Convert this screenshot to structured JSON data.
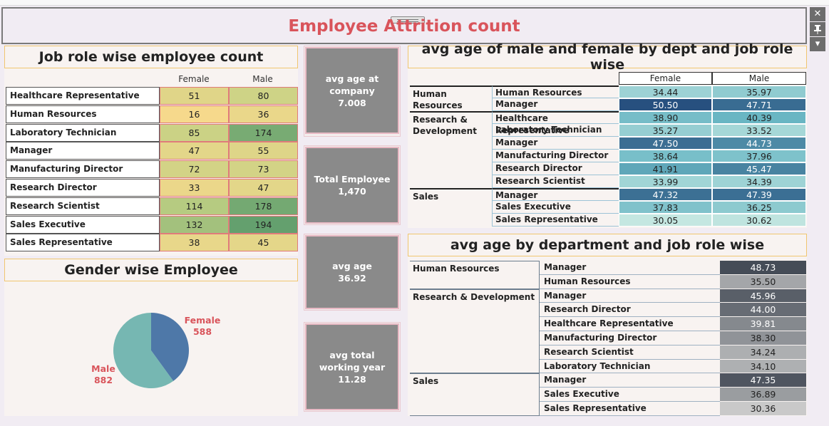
{
  "title": "Employee Attrition count",
  "window_controls": {
    "close": "✕",
    "pin": "📌",
    "menu": "▾"
  },
  "job_role_panel": {
    "title": "Job role wise employee count",
    "columns": [
      "Female",
      "Male"
    ],
    "rows": [
      {
        "role": "Healthcare Representative",
        "female": "51",
        "male": "80"
      },
      {
        "role": "Human Resources",
        "female": "16",
        "male": "36"
      },
      {
        "role": "Laboratory Technician",
        "female": "85",
        "male": "174"
      },
      {
        "role": "Manager",
        "female": "47",
        "male": "55"
      },
      {
        "role": "Manufacturing Director",
        "female": "72",
        "male": "73"
      },
      {
        "role": "Research Director",
        "female": "33",
        "male": "47"
      },
      {
        "role": "Research Scientist",
        "female": "114",
        "male": "178"
      },
      {
        "role": "Sales Executive",
        "female": "132",
        "male": "194"
      },
      {
        "role": "Sales Representative",
        "female": "38",
        "male": "45"
      }
    ],
    "colors": {
      "low": "#f6d98c",
      "high": "#64a06e"
    }
  },
  "gender_panel": {
    "title": "Gender wise Employee",
    "female_label": "Female",
    "female_count": "588",
    "male_label": "Male",
    "male_count": "882",
    "female_color": "#4e78a8",
    "male_color": "#76b7b2"
  },
  "kpis": [
    {
      "label": "avg age at company",
      "value": "7.008"
    },
    {
      "label": "Total Employee",
      "value": "1,470"
    },
    {
      "label": "avg age",
      "value": "36.92"
    },
    {
      "label": "avg total working year",
      "value": "11.28"
    }
  ],
  "age_gender_panel": {
    "title": "avg age of male and female by  dept and job role wise",
    "columns": [
      "Female",
      "Male"
    ],
    "groups": [
      {
        "dept": "Human Resources",
        "rows": [
          {
            "role": "Human Resources",
            "female": "34.44",
            "male": "35.97"
          },
          {
            "role": "Manager",
            "female": "50.50",
            "male": "47.71"
          }
        ]
      },
      {
        "dept": "Research & Development",
        "rows": [
          {
            "role": "Healthcare Representative",
            "female": "38.90",
            "male": "40.39"
          },
          {
            "role": "Laboratory Technician",
            "female": "35.27",
            "male": "33.52"
          },
          {
            "role": "Manager",
            "female": "47.50",
            "male": "44.73"
          },
          {
            "role": "Manufacturing Director",
            "female": "38.64",
            "male": "37.96"
          },
          {
            "role": "Research Director",
            "female": "41.91",
            "male": "45.47"
          },
          {
            "role": "Research Scientist",
            "female": "33.99",
            "male": "34.39"
          }
        ]
      },
      {
        "dept": "Sales",
        "rows": [
          {
            "role": "Manager",
            "female": "47.32",
            "male": "47.39"
          },
          {
            "role": "Sales Executive",
            "female": "37.83",
            "male": "36.25"
          },
          {
            "role": "Sales Representative",
            "female": "30.05",
            "male": "30.62"
          }
        ]
      }
    ]
  },
  "age_dept_panel": {
    "title": "avg age by department and job role wise",
    "groups": [
      {
        "dept": "Human Resources",
        "rows": [
          {
            "role": "Manager",
            "value": "48.73"
          },
          {
            "role": "Human Resources",
            "value": "35.50"
          }
        ]
      },
      {
        "dept": "Research & Development",
        "rows": [
          {
            "role": "Manager",
            "value": "45.96"
          },
          {
            "role": "Research Director",
            "value": "44.00"
          },
          {
            "role": "Healthcare Representative",
            "value": "39.81"
          },
          {
            "role": "Manufacturing Director",
            "value": "38.30"
          },
          {
            "role": "Research Scientist",
            "value": "34.24"
          },
          {
            "role": "Laboratory Technician",
            "value": "34.10"
          }
        ]
      },
      {
        "dept": "Sales",
        "rows": [
          {
            "role": "Manager",
            "value": "47.35"
          },
          {
            "role": "Sales Executive",
            "value": "36.89"
          },
          {
            "role": "Sales Representative",
            "value": "30.36"
          }
        ]
      }
    ]
  }
}
